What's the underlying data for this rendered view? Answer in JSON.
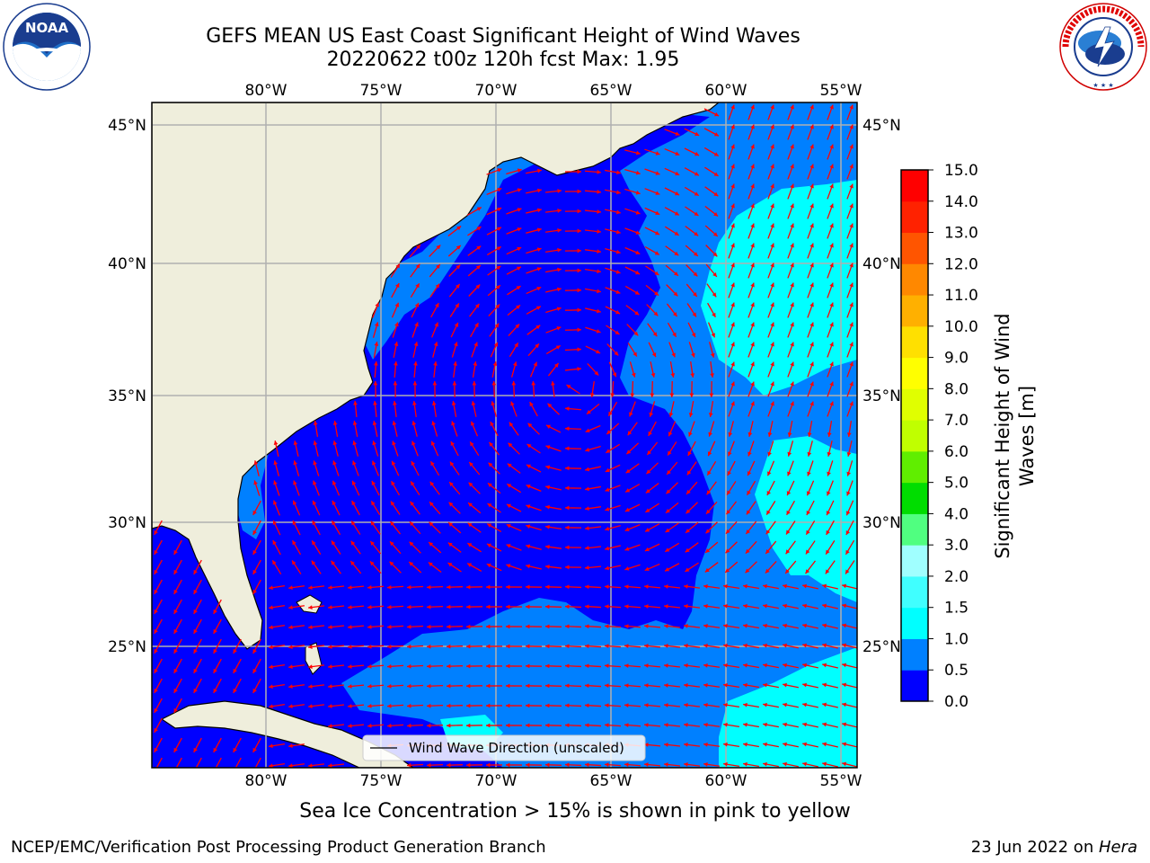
{
  "title_line1": "GEFS MEAN US East Coast Significant Height of Wind Waves",
  "title_line2": "20220622 t00z 120h fcst   Max: 1.95",
  "logos": {
    "noaa_text": "NOAA",
    "noaa_ring_text": "NATIONAL OCEANIC AND ATMOSPHERIC ADMINISTRATION · U.S. DEPARTMENT OF COMMERCE",
    "nws_ring_text": "NATIONAL WEATHER SERVICE"
  },
  "map": {
    "lon_ticks": [
      "80°W",
      "75°W",
      "70°W",
      "65°W",
      "60°W",
      "55°W"
    ],
    "lat_ticks": [
      "45°N",
      "40°N",
      "35°N",
      "30°N",
      "25°N"
    ],
    "lon_range": [
      -85,
      -54
    ],
    "lat_range": [
      20.5,
      46
    ],
    "legend_label": "Wind Wave Direction (unscaled)",
    "arrow_color": "#ff0000",
    "land_color": "#efeedc",
    "grid_color": "#b0b0b0"
  },
  "colorbar": {
    "label": "Significant Height of Wind Waves [m]",
    "levels": [
      "0.0",
      "0.5",
      "1.0",
      "1.5",
      "2.0",
      "3.0",
      "4.0",
      "5.0",
      "6.0",
      "7.0",
      "8.0",
      "9.0",
      "10.0",
      "11.0",
      "12.0",
      "13.0",
      "14.0",
      "15.0"
    ],
    "colors": [
      "#0000ff",
      "#0080ff",
      "#00ffff",
      "#40ffff",
      "#a0ffff",
      "#50ff80",
      "#00dd00",
      "#60ee00",
      "#c0ff00",
      "#e0ff00",
      "#ffff00",
      "#ffe000",
      "#ffb000",
      "#ff8800",
      "#ff5500",
      "#ff2200",
      "#ff0000"
    ]
  },
  "ice_note": "Sea Ice Concentration > 15% is shown in pink to yellow",
  "footer_left": "NCEP/EMC/Verification Post Processing Product Generation Branch",
  "footer_right_date": "23 Jun 2022 on ",
  "footer_right_machine": "Hera"
}
